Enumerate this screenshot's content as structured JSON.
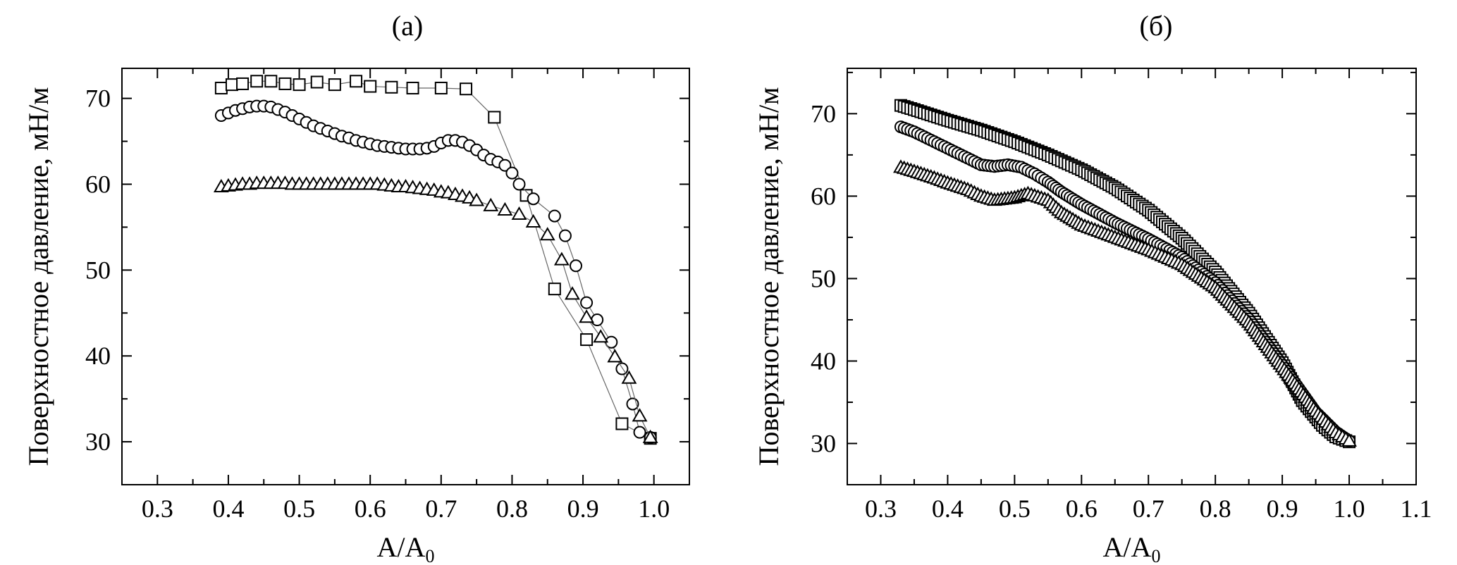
{
  "chart_data": [
    {
      "type": "scatter",
      "title": "(а)",
      "xlabel": "A/A",
      "xlabel_sub": "0",
      "ylabel": "Поверхностное давление, мН/м",
      "xlim": [
        0.25,
        1.05
      ],
      "ylim": [
        25,
        73.5
      ],
      "xticks": [
        0.3,
        0.4,
        0.5,
        0.6,
        0.7,
        0.8,
        0.9,
        1.0
      ],
      "xtick_labels": [
        "0.3",
        "0.4",
        "0.5",
        "0.6",
        "0.7",
        "0.8",
        "0.9",
        "1.0"
      ],
      "yticks": [
        30,
        40,
        50,
        60,
        70
      ],
      "ytick_labels": [
        "30",
        "40",
        "50",
        "60",
        "70"
      ],
      "series": [
        {
          "marker": "square",
          "connected": true,
          "x": [
            0.39,
            0.405,
            0.42,
            0.44,
            0.46,
            0.48,
            0.5,
            0.525,
            0.55,
            0.58,
            0.6,
            0.63,
            0.66,
            0.7,
            0.735,
            0.775,
            0.82,
            0.86,
            0.905,
            0.955,
            0.995
          ],
          "y": [
            71.2,
            71.6,
            71.7,
            72.0,
            72.0,
            71.7,
            71.6,
            71.9,
            71.6,
            72.0,
            71.4,
            71.3,
            71.2,
            71.2,
            71.1,
            67.8,
            58.7,
            47.8,
            41.9,
            32.1,
            30.4
          ]
        },
        {
          "marker": "circle",
          "connected": true,
          "x": [
            0.39,
            0.4,
            0.41,
            0.42,
            0.43,
            0.44,
            0.45,
            0.46,
            0.47,
            0.48,
            0.49,
            0.5,
            0.51,
            0.52,
            0.53,
            0.54,
            0.55,
            0.56,
            0.57,
            0.58,
            0.59,
            0.6,
            0.61,
            0.62,
            0.63,
            0.64,
            0.65,
            0.66,
            0.67,
            0.68,
            0.69,
            0.7,
            0.71,
            0.72,
            0.73,
            0.74,
            0.75,
            0.76,
            0.77,
            0.78,
            0.79,
            0.8,
            0.81,
            0.83,
            0.86,
            0.875,
            0.89,
            0.905,
            0.92,
            0.94,
            0.955,
            0.97,
            0.98,
            0.995
          ],
          "y": [
            68.0,
            68.3,
            68.6,
            68.8,
            69.0,
            69.1,
            69.1,
            69.0,
            68.7,
            68.4,
            68.0,
            67.6,
            67.2,
            66.8,
            66.5,
            66.2,
            65.9,
            65.6,
            65.4,
            65.1,
            64.9,
            64.7,
            64.5,
            64.4,
            64.3,
            64.2,
            64.1,
            64.1,
            64.1,
            64.2,
            64.4,
            64.8,
            65.1,
            65.1,
            64.9,
            64.5,
            64.0,
            63.4,
            62.9,
            62.6,
            62.2,
            61.3,
            60.0,
            58.3,
            56.3,
            54.0,
            50.5,
            46.2,
            44.2,
            41.6,
            38.5,
            34.4,
            31.1,
            30.5
          ]
        },
        {
          "marker": "triangle",
          "connected": true,
          "x": [
            0.39,
            0.4,
            0.41,
            0.42,
            0.43,
            0.44,
            0.45,
            0.46,
            0.47,
            0.48,
            0.49,
            0.5,
            0.51,
            0.52,
            0.53,
            0.54,
            0.55,
            0.56,
            0.57,
            0.58,
            0.59,
            0.6,
            0.61,
            0.62,
            0.63,
            0.64,
            0.65,
            0.66,
            0.67,
            0.68,
            0.69,
            0.7,
            0.71,
            0.72,
            0.73,
            0.74,
            0.75,
            0.77,
            0.79,
            0.81,
            0.83,
            0.85,
            0.87,
            0.885,
            0.905,
            0.925,
            0.945,
            0.965,
            0.98,
            0.995
          ],
          "y": [
            59.7,
            59.8,
            59.9,
            60.0,
            60.0,
            60.1,
            60.1,
            60.1,
            60.1,
            60.1,
            60.0,
            60.0,
            60.0,
            60.0,
            60.0,
            60.0,
            60.0,
            60.0,
            60.0,
            60.0,
            60.0,
            60.0,
            60.0,
            59.9,
            59.8,
            59.7,
            59.7,
            59.6,
            59.5,
            59.4,
            59.3,
            59.1,
            59.0,
            58.8,
            58.6,
            58.4,
            58.1,
            57.5,
            57.0,
            56.5,
            55.6,
            54.1,
            51.2,
            47.2,
            44.5,
            42.2,
            39.9,
            37.4,
            33.0,
            30.5
          ]
        }
      ]
    },
    {
      "type": "scatter",
      "title": "(б)",
      "xlabel": "A/A",
      "xlabel_sub": "0",
      "ylabel": "Поверхностное давление, мН/м",
      "xlim": [
        0.25,
        1.1
      ],
      "ylim": [
        25,
        75.5
      ],
      "xticks": [
        0.3,
        0.4,
        0.5,
        0.6,
        0.7,
        0.8,
        0.9,
        1.0,
        1.1
      ],
      "xtick_labels": [
        "0.3",
        "0.4",
        "0.5",
        "0.6",
        "0.7",
        "0.8",
        "0.9",
        "1.0",
        "1.1"
      ],
      "yticks": [
        30,
        40,
        50,
        60,
        70
      ],
      "ytick_labels": [
        "30",
        "40",
        "50",
        "60",
        "70"
      ],
      "series": [
        {
          "marker": "square",
          "connected": false,
          "x": [
            0.33,
            0.35,
            0.4,
            0.45,
            0.5,
            0.55,
            0.6,
            0.65,
            0.7,
            0.75,
            0.8,
            0.85,
            0.9,
            0.93,
            0.96,
            0.98,
            1.0
          ],
          "y": [
            71.0,
            70.5,
            69.2,
            68.0,
            66.6,
            65.0,
            63.2,
            61.0,
            58.3,
            54.9,
            50.8,
            45.8,
            39.8,
            35.2,
            32.2,
            30.8,
            30.2
          ]
        },
        {
          "marker": "circle",
          "connected": false,
          "x": [
            0.33,
            0.35,
            0.38,
            0.4,
            0.43,
            0.45,
            0.47,
            0.49,
            0.51,
            0.53,
            0.55,
            0.57,
            0.6,
            0.65,
            0.7,
            0.75,
            0.8,
            0.85,
            0.9,
            0.95,
            0.98,
            1.0
          ],
          "y": [
            68.4,
            67.8,
            66.6,
            65.8,
            64.6,
            63.8,
            63.6,
            63.8,
            63.5,
            62.7,
            61.7,
            60.5,
            59.0,
            56.8,
            54.8,
            52.6,
            49.5,
            45.1,
            39.5,
            33.8,
            31.4,
            30.3
          ]
        },
        {
          "marker": "triangle",
          "connected": false,
          "x": [
            0.33,
            0.35,
            0.38,
            0.4,
            0.43,
            0.45,
            0.47,
            0.5,
            0.52,
            0.55,
            0.57,
            0.6,
            0.65,
            0.7,
            0.75,
            0.8,
            0.85,
            0.9,
            0.95,
            0.98,
            1.0
          ],
          "y": [
            63.5,
            63.0,
            62.2,
            61.6,
            60.8,
            60.0,
            59.5,
            59.8,
            60.3,
            59.5,
            58.0,
            56.5,
            55.0,
            53.5,
            51.7,
            48.9,
            44.7,
            39.3,
            33.9,
            31.3,
            30.3
          ]
        }
      ]
    }
  ]
}
